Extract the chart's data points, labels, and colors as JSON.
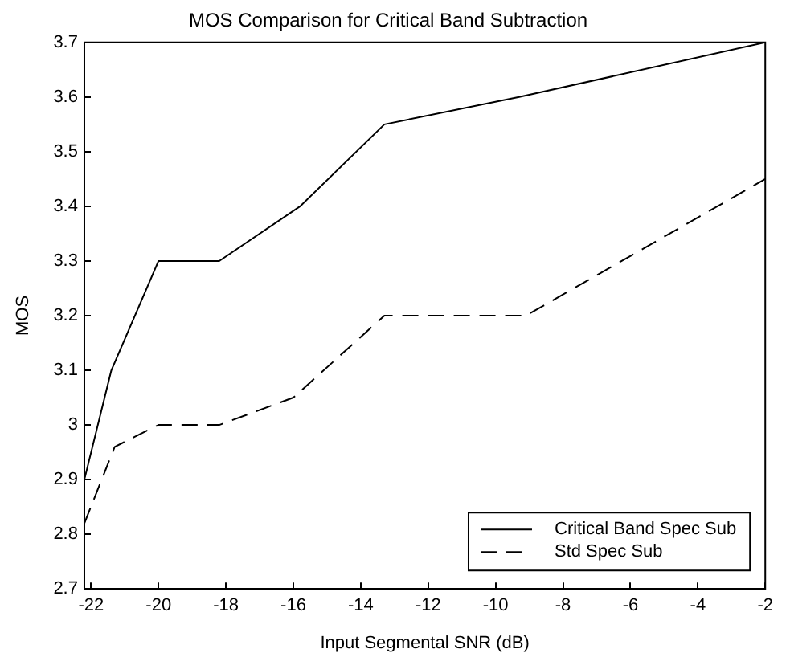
{
  "chart_data": {
    "type": "line",
    "title": "MOS Comparison for Critical Band Subtraction",
    "xlabel": "Input Segmental SNR (dB)",
    "ylabel": "MOS",
    "xlim": [
      -22.2,
      -2
    ],
    "xticks": [
      -22,
      -20,
      -18,
      -16,
      -14,
      -12,
      -10,
      -8,
      -6,
      -4,
      -2
    ],
    "ylim": [
      2.7,
      3.7
    ],
    "yticks": [
      2.7,
      2.8,
      2.9,
      3,
      3.1,
      3.2,
      3.3,
      3.4,
      3.5,
      3.6,
      3.7
    ],
    "grid": false,
    "legend": "bottom right",
    "marker": "none",
    "series": [
      {
        "name": "Critical Band Spec Sub",
        "color": "#000000",
        "line_style": "solid",
        "x": [
          -22.2,
          -21.4,
          -20,
          -18.2,
          -15.8,
          -13.3,
          -9.3,
          -2
        ],
        "values": [
          2.9,
          3.1,
          3.3,
          3.3,
          3.4,
          3.55,
          3.6,
          3.7
        ]
      },
      {
        "name": "Std Spec Sub",
        "color": "#000000",
        "line_style": "dashed",
        "x": [
          -22.2,
          -21.3,
          -20,
          -18.2,
          -16,
          -13.3,
          -9.1,
          -2
        ],
        "values": [
          2.82,
          2.96,
          3.0,
          3.0,
          3.05,
          3.2,
          3.2,
          3.45
        ]
      }
    ]
  }
}
